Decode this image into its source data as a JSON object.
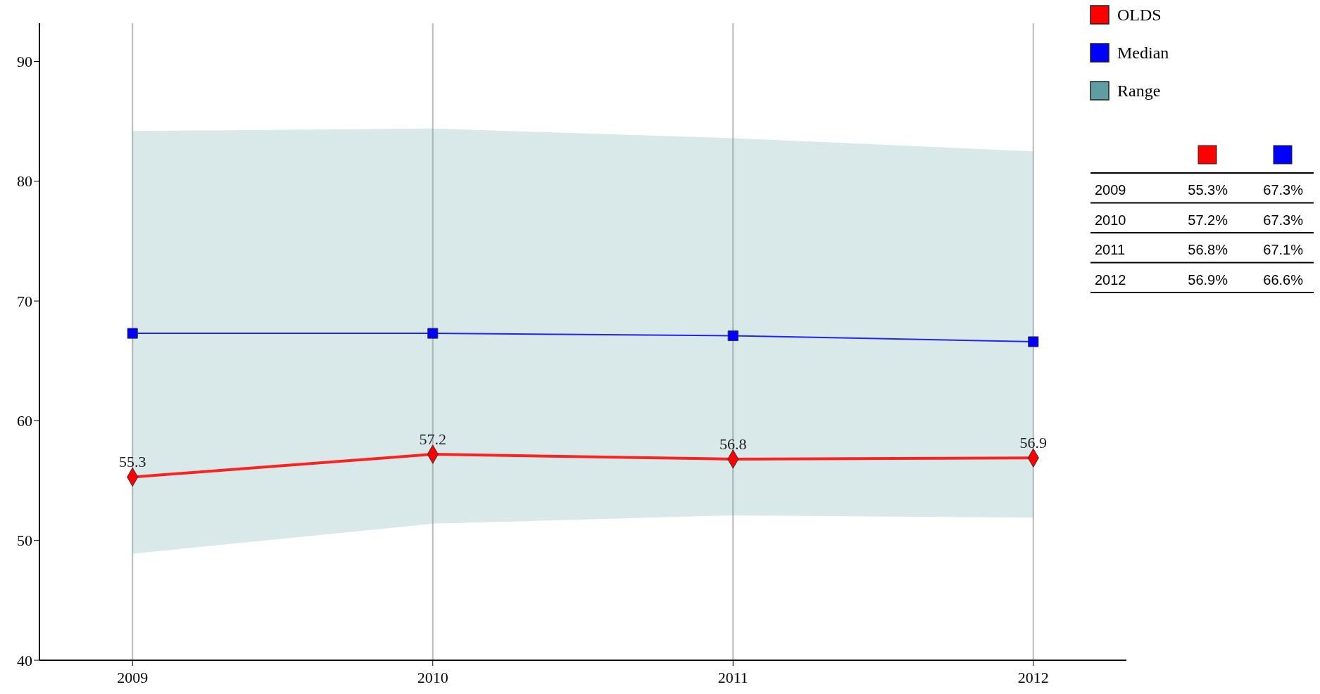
{
  "chart_data": {
    "type": "line",
    "categories": [
      "2009",
      "2010",
      "2011",
      "2012"
    ],
    "series": [
      {
        "name": "OLDS",
        "color": "#ff0000",
        "values": [
          55.3,
          57.2,
          56.8,
          56.9
        ],
        "marker": "diamond",
        "value_labels": [
          "55.3",
          "57.2",
          "56.8",
          "56.9"
        ]
      },
      {
        "name": "Median",
        "color": "#0000ff",
        "values": [
          67.3,
          67.3,
          67.1,
          66.6
        ],
        "marker": "square"
      },
      {
        "name": "Range",
        "type": "area",
        "color": "#5f9ea0",
        "values": [
          null,
          null,
          null,
          null
        ],
        "lower": [
          48.9,
          51.4,
          52.1,
          51.9
        ],
        "upper": [
          84.2,
          84.4,
          83.6,
          82.5
        ]
      }
    ],
    "ylim": [
      40,
      93.2
    ],
    "yticks": [
      40,
      50,
      60,
      70,
      80,
      90
    ],
    "grid": "x",
    "legend": "top right",
    "annotations": [
      "55.3%",
      "67.3%",
      "57.2%",
      "67.3%",
      "56.8%",
      "67.1%",
      "56.9%",
      "66.6%"
    ]
  }
}
